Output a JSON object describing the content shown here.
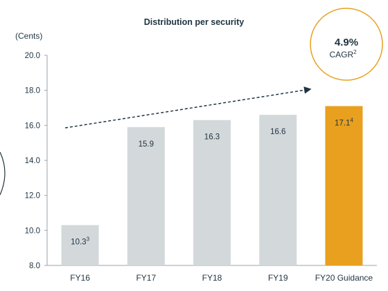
{
  "chart_data": {
    "type": "bar",
    "title": "Distribution per security",
    "ylabel": "(Cents)",
    "ylim": [
      8.0,
      20.0
    ],
    "yticks": [
      "20.0",
      "18.0",
      "16.0",
      "14.0",
      "12.0",
      "10.0",
      "8.0"
    ],
    "categories": [
      "FY16",
      "FY17",
      "FY18",
      "FY19",
      "FY20 Guidance"
    ],
    "values": [
      10.3,
      15.9,
      16.3,
      16.6,
      17.1
    ],
    "value_labels": [
      "10.3",
      "15.9",
      "16.3",
      "16.6",
      "17.1"
    ],
    "value_footnotes": [
      "3",
      "",
      "",
      "",
      "4"
    ],
    "bar_colors": [
      "#d3d8db",
      "#d3d8db",
      "#d3d8db",
      "#d3d8db",
      "#e8a01e"
    ],
    "trend_arrow": {
      "from_category": "FY16",
      "to_category": "FY20 Guidance",
      "style": "dashed"
    },
    "annotation": {
      "value": "4.9%",
      "label": "CAGR",
      "footnote": "2",
      "ring_color": "#e8a01e"
    }
  }
}
